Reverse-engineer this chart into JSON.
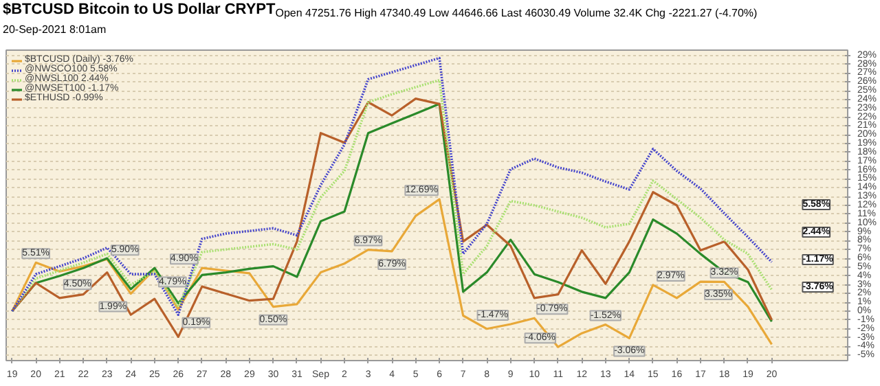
{
  "chart_data": {
    "type": "line",
    "title": "$BTCUSD Bitcoin to US Dollar CRYPT",
    "subtitle": "20-Sep-2021 8:01am",
    "categories": [
      "19",
      "20",
      "21",
      "22",
      "23",
      "24",
      "25",
      "26",
      "27",
      "28",
      "29",
      "30",
      "31",
      "Sep",
      "2",
      "3",
      "4",
      "5",
      "6",
      "7",
      "8",
      "9",
      "10",
      "11",
      "12",
      "13",
      "14",
      "15",
      "16",
      "17",
      "18",
      "19",
      "20"
    ],
    "series": [
      {
        "name": "$BTCUSD (Daily) -3.76%",
        "color": "#e8a838",
        "line_style": "solid",
        "values": [
          0,
          5.51,
          4.5,
          5.1,
          5.9,
          1.99,
          4.79,
          0.19,
          4.9,
          4.6,
          4.3,
          0.5,
          0.8,
          4.4,
          5.4,
          6.97,
          6.79,
          10.8,
          12.69,
          -0.5,
          -2.0,
          -1.47,
          -0.79,
          -4.06,
          -2.5,
          -1.52,
          -3.06,
          2.97,
          1.5,
          3.35,
          3.32,
          0.5,
          -3.76
        ],
        "value_labels": [
          null,
          "5.51%",
          "4.50%",
          null,
          "5.90%",
          "1.99%",
          "4.79%",
          "0.19%",
          "4.90%",
          null,
          null,
          "0.50%",
          null,
          null,
          null,
          "6.97%",
          "6.79%",
          null,
          "12.69%",
          null,
          null,
          "-1.47%",
          "-0.79%",
          "-4.06%",
          null,
          "-1.52%",
          "-3.06%",
          "2.97%",
          null,
          "3.35%",
          "3.32%",
          null,
          null
        ]
      },
      {
        "name": "@NWSCO100 5.58%",
        "color": "#4444cc",
        "line_style": "dotted",
        "values": [
          0,
          4.2,
          5.1,
          6.0,
          7.2,
          4.2,
          4.2,
          -0.4,
          8.2,
          8.8,
          9.1,
          9.4,
          8.6,
          14.3,
          18.9,
          26.3,
          27.1,
          27.9,
          28.7,
          6.5,
          9.9,
          16.1,
          17.3,
          16.3,
          15.7,
          14.7,
          13.8,
          18.4,
          15.9,
          13.9,
          11.1,
          8.4,
          5.58
        ]
      },
      {
        "name": "@NWSL100 2.44%",
        "color": "#a8e070",
        "line_style": "dotted",
        "values": [
          0,
          3.7,
          4.6,
          5.5,
          6.5,
          3.0,
          4.5,
          0.5,
          6.7,
          7.0,
          7.3,
          7.6,
          7.0,
          12.9,
          15.9,
          23.7,
          24.6,
          25.4,
          26.2,
          4.2,
          7.4,
          12.5,
          12.0,
          11.3,
          10.6,
          9.5,
          9.9,
          14.8,
          12.7,
          10.6,
          8.1,
          6.5,
          2.44
        ]
      },
      {
        "name": "@NWSET100 -1.17%",
        "color": "#2a8a2a",
        "line_style": "solid",
        "values": [
          0,
          3.2,
          4.0,
          4.9,
          6.0,
          2.5,
          4.9,
          0.9,
          4.1,
          4.4,
          4.8,
          5.1,
          3.9,
          10.2,
          11.3,
          20.2,
          21.3,
          22.4,
          23.5,
          2.2,
          4.4,
          8.1,
          4.2,
          3.3,
          2.2,
          1.5,
          4.4,
          10.4,
          8.8,
          6.5,
          4.4,
          3.3,
          -1.17
        ]
      },
      {
        "name": "$ETHUSD -0.99%",
        "color": "#b8602a",
        "line_style": "solid",
        "values": [
          0,
          3.2,
          1.5,
          1.9,
          4.4,
          -0.4,
          1.4,
          -2.9,
          2.8,
          2.0,
          1.2,
          1.4,
          7.9,
          20.2,
          19.1,
          23.7,
          22.2,
          24.1,
          23.5,
          7.9,
          9.8,
          7.4,
          1.5,
          1.9,
          6.9,
          3.1,
          7.9,
          13.5,
          12.0,
          6.9,
          7.9,
          4.7,
          -0.99
        ]
      }
    ],
    "ylim": [
      -5.6,
      29.6
    ],
    "yticks": [
      {
        "value": -5,
        "label": "-5%"
      },
      {
        "value": -4,
        "label": "-4%"
      },
      {
        "value": -3,
        "label": "-3%"
      },
      {
        "value": -2,
        "label": "-2%"
      },
      {
        "value": -1,
        "label": "-1%"
      },
      {
        "value": 0,
        "label": "0%"
      },
      {
        "value": 1,
        "label": "1%"
      },
      {
        "value": 2,
        "label": "2%"
      },
      {
        "value": 3,
        "label": "3%"
      },
      {
        "value": 4,
        "label": "4%"
      },
      {
        "value": 5,
        "label": "5%"
      },
      {
        "value": 6,
        "label": "6%"
      },
      {
        "value": 7,
        "label": "7%"
      },
      {
        "value": 8,
        "label": "8%"
      },
      {
        "value": 9,
        "label": "9%"
      },
      {
        "value": 10,
        "label": "10%"
      },
      {
        "value": 11,
        "label": "11%"
      },
      {
        "value": 12,
        "label": "12%"
      },
      {
        "value": 13,
        "label": "13%"
      },
      {
        "value": 14,
        "label": "14%"
      },
      {
        "value": 15,
        "label": "15%"
      },
      {
        "value": 16,
        "label": "16%"
      },
      {
        "value": 17,
        "label": "17%"
      },
      {
        "value": 18,
        "label": "18%"
      },
      {
        "value": 19,
        "label": "19%"
      },
      {
        "value": 20,
        "label": "20%"
      },
      {
        "value": 21,
        "label": "21%"
      },
      {
        "value": 22,
        "label": "22%"
      },
      {
        "value": 23,
        "label": "23%"
      },
      {
        "value": 24,
        "label": "24%"
      },
      {
        "value": 25,
        "label": "25%"
      },
      {
        "value": 26,
        "label": "26%"
      },
      {
        "value": 27,
        "label": "27%"
      },
      {
        "value": 28,
        "label": "28%"
      },
      {
        "value": 29,
        "label": "29%"
      }
    ],
    "grid": "y",
    "legend": "top left",
    "marker": "none",
    "annotations": [
      "Open 47251.76 High 47340.49 Low 44646.66 Last 46030.49 Volume 32.4K Chg -2221.27 (-4.70%)",
      "5.58%",
      "2.44%",
      "-1.17%",
      "-3.76%"
    ]
  }
}
